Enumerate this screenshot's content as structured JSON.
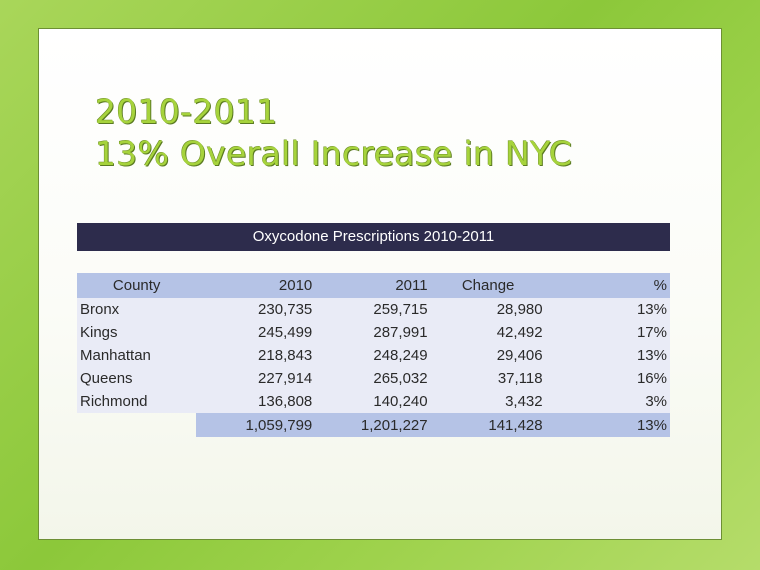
{
  "slide": {
    "title_line1": "2010-2011",
    "title_line2": "13% Overall Increase in NYC"
  },
  "table": {
    "caption": "Oxycodone Prescriptions 2010-2011",
    "columns": [
      "County",
      "2010",
      "2011",
      "Change",
      "%"
    ],
    "rows": [
      [
        "Bronx",
        "230,735",
        "259,715",
        "28,980",
        "13%"
      ],
      [
        "Kings",
        "245,499",
        "287,991",
        "42,492",
        "17%"
      ],
      [
        "Manhattan",
        "218,843",
        "248,249",
        "29,406",
        "13%"
      ],
      [
        "Queens",
        "227,914",
        "265,032",
        "37,118",
        "16%"
      ],
      [
        "Richmond",
        "136,808",
        "140,240",
        "3,432",
        "3%"
      ]
    ],
    "total": [
      "",
      "1,059,799",
      "1,201,227",
      "141,428",
      "13%"
    ]
  },
  "colors": {
    "background": "#9ed24c",
    "title": "#a6d33c",
    "header_bar": "#2d2c4c",
    "header_row": "#b5c3e6",
    "body_row": "#e9ebf6"
  }
}
